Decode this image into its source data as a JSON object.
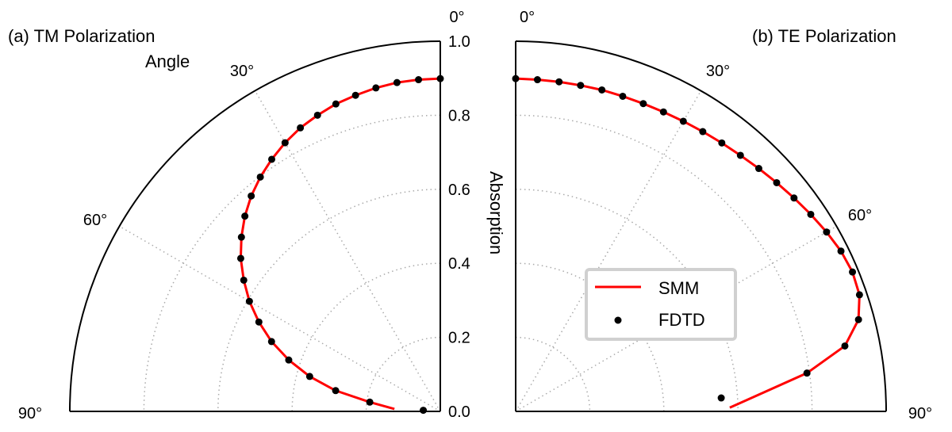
{
  "chart_data": [
    {
      "type": "polar-line-scatter",
      "title": "(a) TM Polarization",
      "theta_label": "Angle",
      "r_label": "Absorption",
      "theta_range_deg": [
        0,
        90
      ],
      "theta_direction": "counterclockwise-left",
      "r_range": [
        0,
        1.0
      ],
      "r_ticks": [
        "0.0",
        "0.2",
        "0.4",
        "0.6",
        "0.8",
        "1.0"
      ],
      "theta_ticks": [
        "0°",
        "30°",
        "60°",
        "90°"
      ],
      "grid": true,
      "series": [
        {
          "name": "SMM",
          "style": "line",
          "color": "#ff0000",
          "theta": [
            0,
            3.75,
            7.5,
            11.25,
            15,
            18.75,
            22.5,
            26.25,
            30,
            33.75,
            37.5,
            41.25,
            45,
            48.75,
            52.5,
            56.25,
            60,
            63.75,
            67.5,
            71.25,
            75,
            78.75,
            82.5,
            87
          ],
          "r": [
            0.899,
            0.898,
            0.896,
            0.891,
            0.884,
            0.877,
            0.866,
            0.854,
            0.838,
            0.819,
            0.798,
            0.774,
            0.746,
            0.714,
            0.679,
            0.638,
            0.595,
            0.546,
            0.493,
            0.432,
            0.365,
            0.288,
            0.192,
            0.124
          ]
        },
        {
          "name": "FDTD",
          "style": "markers",
          "color": "#000000",
          "theta": [
            0,
            3.75,
            7.5,
            11.25,
            15,
            18.75,
            22.5,
            26.25,
            30,
            33.75,
            37.5,
            41.25,
            45,
            48.75,
            52.5,
            56.25,
            60,
            63.75,
            67.5,
            71.25,
            75,
            78.75,
            82.5,
            86.25
          ],
          "r": [
            0.899,
            0.898,
            0.896,
            0.891,
            0.884,
            0.877,
            0.866,
            0.854,
            0.838,
            0.819,
            0.798,
            0.774,
            0.746,
            0.714,
            0.679,
            0.638,
            0.595,
            0.546,
            0.493,
            0.432,
            0.365,
            0.288,
            0.192,
            0.046
          ]
        }
      ]
    },
    {
      "type": "polar-line-scatter",
      "title": "(b) TE Polarization",
      "theta_range_deg": [
        0,
        90
      ],
      "theta_direction": "clockwise-right",
      "r_range": [
        0,
        1.0
      ],
      "theta_ticks": [
        "0°",
        "30°",
        "60°",
        "90°"
      ],
      "grid": true,
      "legend": {
        "placement": "center-lower",
        "entries": [
          "SMM",
          "FDTD"
        ]
      },
      "series": [
        {
          "name": "SMM",
          "style": "line",
          "color": "#ff0000",
          "theta": [
            0,
            3.75,
            7.5,
            11.25,
            15,
            18.75,
            22.5,
            26.25,
            30,
            33.75,
            37.5,
            41.25,
            45,
            48.75,
            52.5,
            56.25,
            60,
            63.75,
            67.5,
            71.25,
            75,
            78.75,
            82.5,
            89
          ],
          "r": [
            0.899,
            0.898,
            0.898,
            0.898,
            0.899,
            0.899,
            0.9,
            0.902,
            0.905,
            0.909,
            0.914,
            0.92,
            0.928,
            0.937,
            0.947,
            0.958,
            0.969,
            0.979,
            0.984,
            0.98,
            0.958,
            0.906,
            0.793,
            0.578
          ]
        },
        {
          "name": "FDTD",
          "style": "markers",
          "color": "#000000",
          "theta": [
            0,
            3.75,
            7.5,
            11.25,
            15,
            18.75,
            22.5,
            26.25,
            30,
            33.75,
            37.5,
            41.25,
            45,
            48.75,
            52.5,
            56.25,
            60,
            63.75,
            67.5,
            71.25,
            75,
            78.75,
            82.5,
            86.25
          ],
          "r": [
            0.899,
            0.898,
            0.898,
            0.898,
            0.899,
            0.899,
            0.9,
            0.902,
            0.905,
            0.909,
            0.914,
            0.92,
            0.928,
            0.937,
            0.947,
            0.958,
            0.969,
            0.979,
            0.984,
            0.98,
            0.958,
            0.906,
            0.793,
            0.556
          ]
        }
      ]
    }
  ]
}
